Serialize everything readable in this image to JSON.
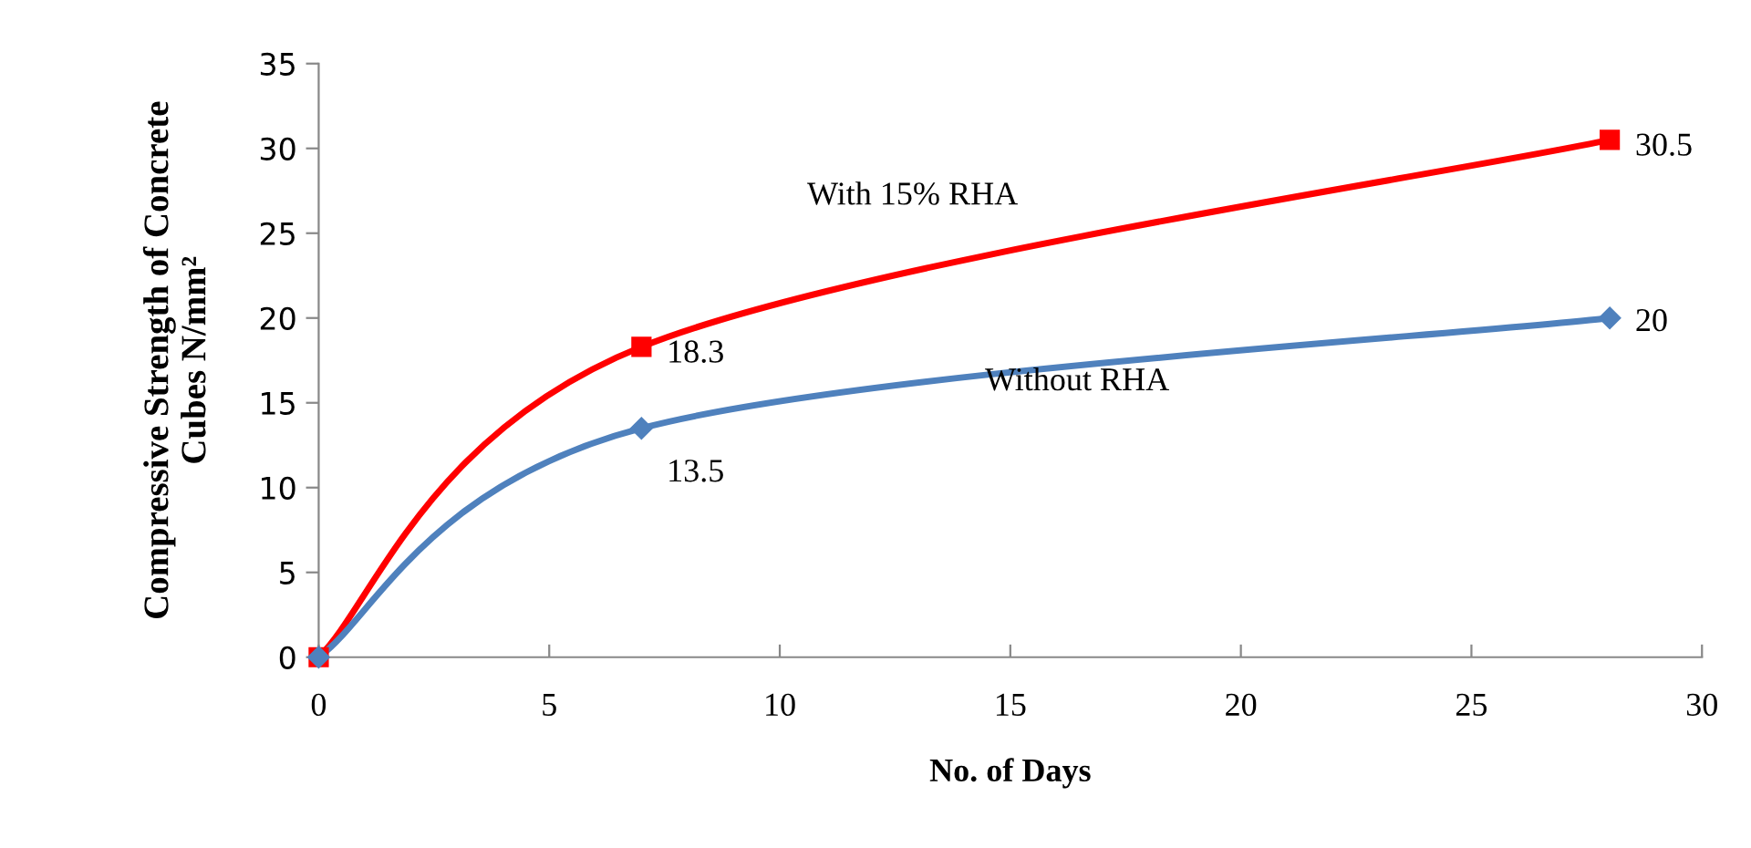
{
  "chart_data": {
    "type": "line",
    "xlabel": "No. of Days",
    "ylabel": "Compressive Strength of Concrete\nCubes N/mm²",
    "x": [
      0,
      7,
      28
    ],
    "series": [
      {
        "name": "With 15% RHA",
        "color": "#ff0000",
        "values": [
          0,
          18.3,
          30.5
        ],
        "marker": "square",
        "value_labels": [
          null,
          "18.3",
          "30.5"
        ]
      },
      {
        "name": "Without RHA",
        "color": "#4f81bd",
        "values": [
          0,
          13.5,
          20
        ],
        "marker": "diamond",
        "value_labels": [
          null,
          "13.5",
          "20"
        ]
      }
    ],
    "xlim": [
      0,
      30
    ],
    "xticks": [
      0,
      5,
      10,
      15,
      20,
      25,
      30
    ],
    "ylim": [
      0,
      35
    ],
    "yticks": [
      0,
      5,
      10,
      15,
      20,
      25,
      30,
      35
    ],
    "grid": false,
    "legend": false,
    "line_style": "solid"
  }
}
